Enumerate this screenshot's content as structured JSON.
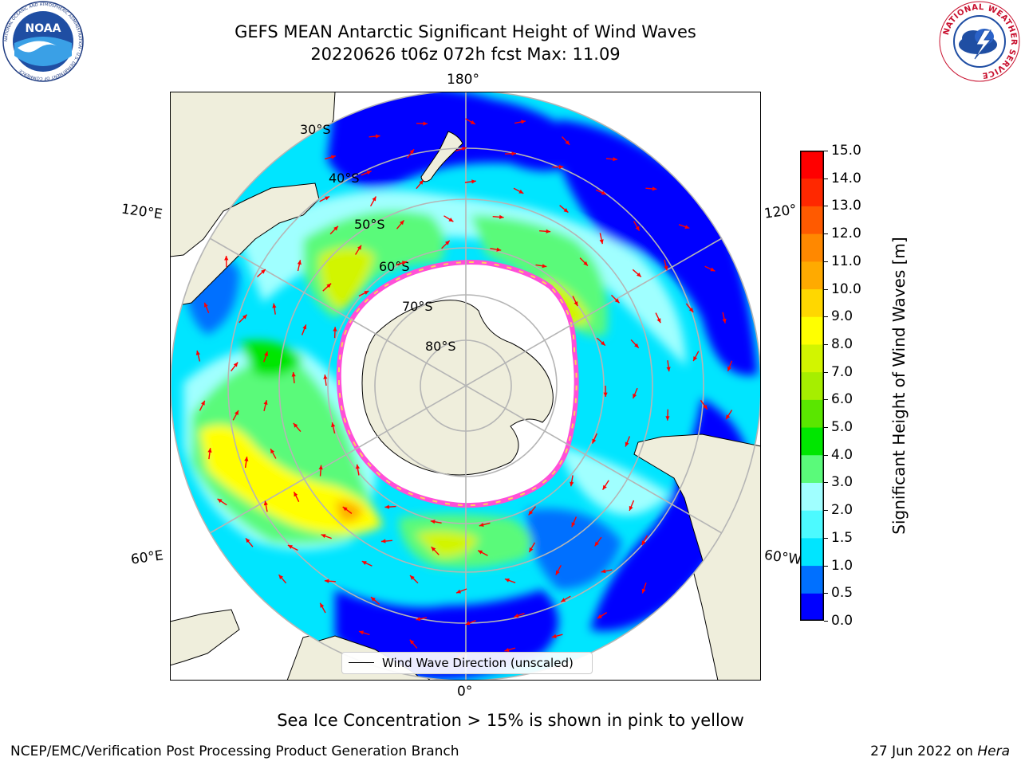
{
  "header": {
    "title_line1": "GEFS MEAN Antarctic Significant Height of Wind Waves",
    "title_line2": "20220626 t06z 072h fcst   Max: 11.09"
  },
  "logos": {
    "noaa": {
      "text": "NOAA",
      "ring_text": "NATIONAL OCEANIC AND ATMOSPHERIC ADMINISTRATION · U.S. DEPARTMENT OF COMMERCE"
    },
    "nws": {
      "ring_text": "NATIONAL WEATHER SERVICE"
    }
  },
  "map": {
    "projection": "south-polar-stereographic",
    "longitude_labels": {
      "top": "180°",
      "bottom": "0°",
      "upper_left": "120°E",
      "upper_right": "120°",
      "lower_left": "60°E",
      "lower_right": "60°W"
    },
    "latitude_labels": [
      "30°S",
      "40°S",
      "50°S",
      "60°S",
      "70°S",
      "80°S"
    ],
    "legend": {
      "label": "Wind Wave Direction (unscaled)"
    },
    "colors": {
      "land": "#efeedc",
      "gridlines": "#b5b5b5",
      "arrows": "#ff0000",
      "ice_edge_pink": "#ff4fd8",
      "ice_edge_yellow": "#ffd25a"
    }
  },
  "colorbar": {
    "label": "Significant Height of Wind Waves [m]",
    "ticks": [
      "15.0",
      "14.0",
      "13.0",
      "12.0",
      "11.0",
      "10.0",
      "9.0",
      "8.0",
      "7.0",
      "6.0",
      "5.0",
      "4.0",
      "3.0",
      "2.0",
      "1.5",
      "1.0",
      "0.5",
      "0.0"
    ],
    "segment_colors_bottom_to_top": [
      "#0000ff",
      "#0070ff",
      "#00e5ff",
      "#4cfaff",
      "#a0ffff",
      "#5afa7a",
      "#00e600",
      "#5ae600",
      "#a6ee00",
      "#d2f500",
      "#ffff00",
      "#ffd700",
      "#ffaa00",
      "#ff8800",
      "#ff5a00",
      "#ff2800",
      "#ff0000"
    ]
  },
  "notes": {
    "ice_note": "Sea Ice Concentration > 15% is shown in pink to yellow",
    "footer_left": "NCEP/EMC/Verification Post Processing Product Generation Branch",
    "footer_date": "27 Jun 2022 on",
    "footer_host": "Hera"
  }
}
